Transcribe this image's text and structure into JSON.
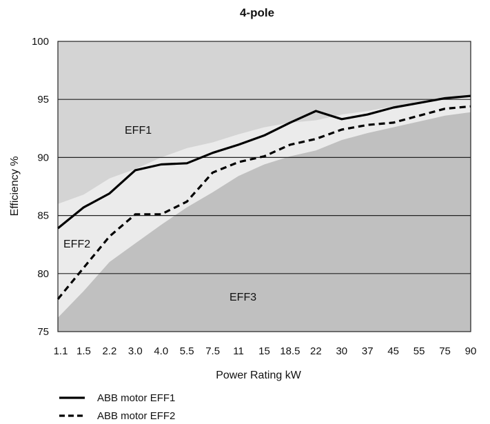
{
  "chart_data": {
    "type": "area",
    "title": "4-pole",
    "xlabel": "Power Rating kW",
    "ylabel": "Efficiency %",
    "ylim": [
      75,
      100
    ],
    "y_ticks": [
      "75",
      "80",
      "85",
      "90",
      "95",
      "100"
    ],
    "categories": [
      "1.1",
      "1.5",
      "2.2",
      "3.0",
      "4.0",
      "5.5",
      "7.5",
      "11",
      "15",
      "18.5",
      "22",
      "30",
      "37",
      "45",
      "55",
      "75",
      "90"
    ],
    "grid": "horizontal lines at 80, 85, 90, 95",
    "regions": [
      {
        "label": "EFF1",
        "color": "#d4d4d4",
        "lower_bound": [
          86.0,
          86.8,
          88.2,
          89.0,
          90.0,
          90.8,
          91.3,
          92.0,
          92.6,
          93.0,
          93.2,
          93.7,
          94.0,
          94.4,
          94.7,
          95.0,
          95.3
        ]
      },
      {
        "label": "EFF2",
        "color": "#ebebeb",
        "lower_bound": [
          76.2,
          78.5,
          81.0,
          82.6,
          84.2,
          85.7,
          87.0,
          88.4,
          89.4,
          90.1,
          90.6,
          91.5,
          92.1,
          92.6,
          93.1,
          93.6,
          93.9
        ]
      },
      {
        "label": "EFF3",
        "color": "#c0c0c0"
      }
    ],
    "series": [
      {
        "name": "ABB motor EFF1",
        "style": "solid",
        "values": [
          83.9,
          85.7,
          86.9,
          88.9,
          89.4,
          89.5,
          90.4,
          91.1,
          91.9,
          93.0,
          94.0,
          93.3,
          93.7,
          94.3,
          94.7,
          95.1,
          95.3
        ]
      },
      {
        "name": "ABB motor EFF2",
        "style": "dashed",
        "values": [
          77.8,
          80.5,
          83.2,
          85.1,
          85.1,
          86.2,
          88.7,
          89.6,
          90.1,
          91.1,
          91.6,
          92.4,
          92.8,
          93.0,
          93.6,
          94.2,
          94.4
        ]
      }
    ],
    "legend": {
      "position": "bottom-left"
    }
  }
}
